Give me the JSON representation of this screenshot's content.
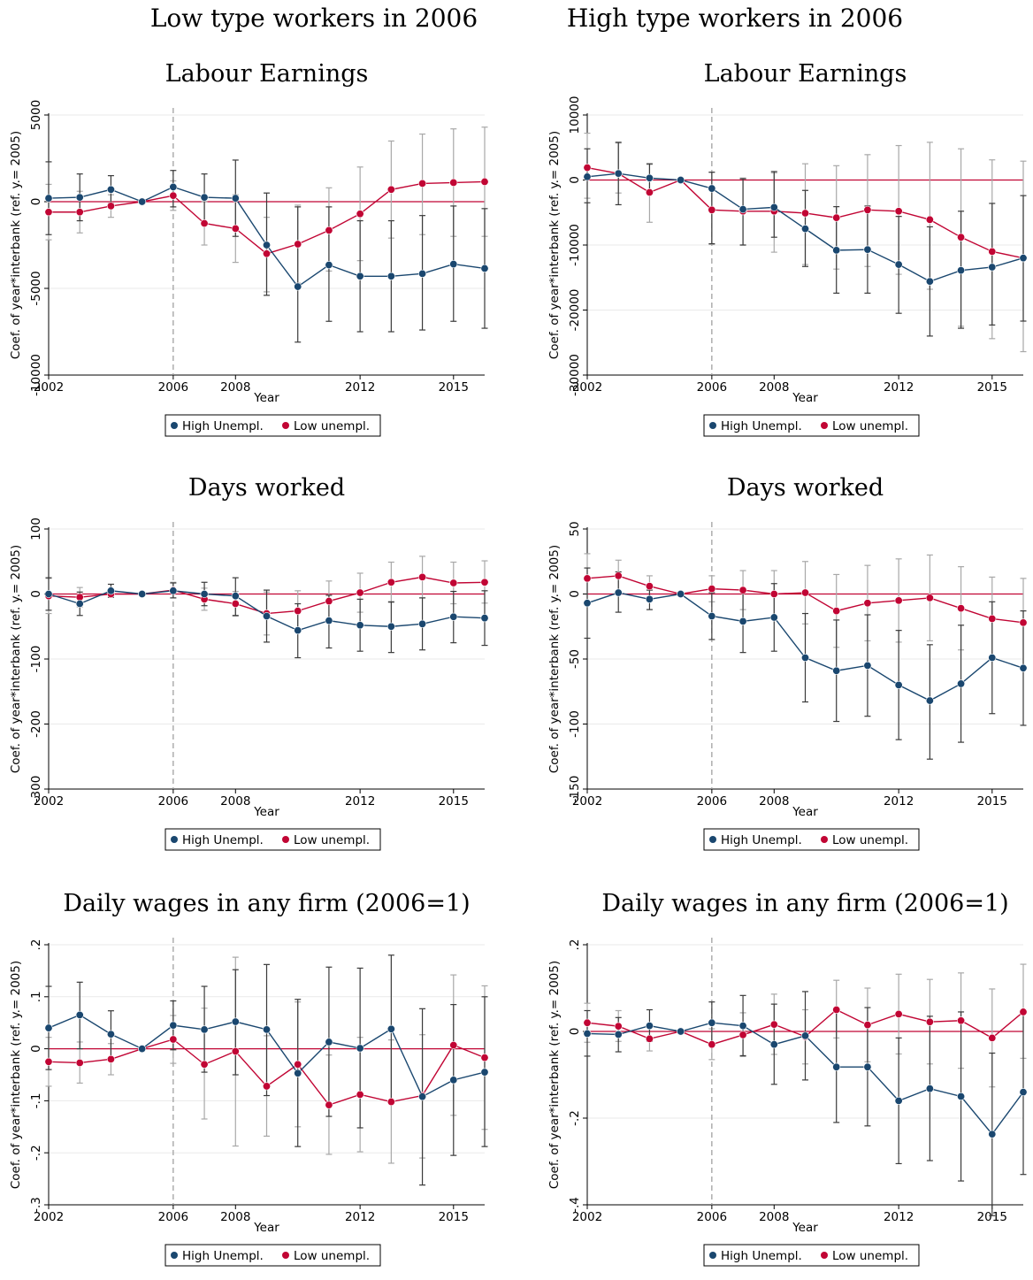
{
  "column_titles": [
    "Low type workers in 2006",
    "High type workers in 2006"
  ],
  "colors": {
    "high": "#1a476f",
    "low": "#c10534",
    "ci_high": "#3a3a3a",
    "ci_low": "#a8a8a8",
    "zero_line": "#c10534",
    "vline": "#999999"
  },
  "legend": {
    "high": "High Unempl.",
    "low": "Low unempl."
  },
  "chart_data": [
    {
      "type": "line",
      "title": "Labour Earnings",
      "column": "Low type workers in 2006",
      "xlabel": "Year",
      "ylabel": "Coef. of year*interbank (ref. y.= 2005)",
      "xlim": [
        2002,
        2016
      ],
      "ylim": [
        -10000,
        5000
      ],
      "xticks": [
        2002,
        2006,
        2008,
        2012,
        2015
      ],
      "yticks": [
        -10000,
        -5000,
        0,
        5000
      ],
      "vline": 2006,
      "x": [
        2002,
        2003,
        2004,
        2005,
        2006,
        2007,
        2008,
        2009,
        2010,
        2011,
        2012,
        2013,
        2014,
        2015,
        2016
      ],
      "series": [
        {
          "name": "High Unempl.",
          "values": [
            200,
            250,
            700,
            0,
            850,
            250,
            200,
            -2500,
            -4900,
            -3650,
            -4300,
            -4300,
            -4150,
            -3600,
            -3850
          ],
          "ci_lo": [
            -1900,
            -1100,
            -100,
            0,
            -300,
            -1200,
            -2000,
            -5400,
            -8100,
            -6900,
            -7500,
            -7500,
            -7400,
            -6900,
            -7300
          ],
          "ci_hi": [
            2300,
            1600,
            1500,
            0,
            1800,
            1600,
            2400,
            500,
            -300,
            -300,
            -1100,
            -1100,
            -800,
            -250,
            -400
          ]
        },
        {
          "name": "Low unempl.",
          "values": [
            -600,
            -600,
            -250,
            0,
            350,
            -1250,
            -1550,
            -3000,
            -2450,
            -1650,
            -700,
            700,
            1050,
            1100,
            1150
          ],
          "ci_lo": [
            -2200,
            -1800,
            -900,
            0,
            -500,
            -2500,
            -3500,
            -5200,
            -4700,
            -4000,
            -3400,
            -2100,
            -1900,
            -2000,
            -2000
          ],
          "ci_hi": [
            1000,
            600,
            400,
            0,
            1200,
            0,
            400,
            -900,
            -200,
            800,
            2000,
            3500,
            3900,
            4200,
            4300
          ]
        }
      ]
    },
    {
      "type": "line",
      "title": "Labour Earnings",
      "column": "High type workers in 2006",
      "xlabel": "Year",
      "ylabel": "Coef. of year*interbank (ref. y.= 2005)",
      "xlim": [
        2002,
        2016
      ],
      "ylim": [
        -30000,
        10000
      ],
      "xticks": [
        2002,
        2006,
        2008,
        2012,
        2015
      ],
      "yticks": [
        -30000,
        -20000,
        -10000,
        0,
        10000
      ],
      "vline": 2006,
      "x": [
        2002,
        2003,
        2004,
        2005,
        2006,
        2007,
        2008,
        2009,
        2010,
        2011,
        2012,
        2013,
        2014,
        2015,
        2016
      ],
      "series": [
        {
          "name": "High Unempl.",
          "values": [
            500,
            1000,
            300,
            0,
            -1300,
            -4500,
            -4200,
            -7500,
            -10800,
            -10700,
            -13000,
            -15600,
            -13900,
            -13400,
            -12000
          ],
          "ci_lo": [
            -3500,
            -3800,
            -1800,
            0,
            -9800,
            -10000,
            -8800,
            -13300,
            -17400,
            -17400,
            -20500,
            -24000,
            -22800,
            -22300,
            -21700
          ],
          "ci_hi": [
            4800,
            5800,
            2500,
            0,
            1200,
            200,
            1300,
            -1600,
            -4100,
            -4000,
            -5600,
            -7200,
            -4800,
            -3600,
            -2400
          ]
        },
        {
          "name": "Low unempl.",
          "values": [
            1900,
            1000,
            -1900,
            0,
            -4600,
            -4800,
            -4800,
            -5100,
            -5800,
            -4600,
            -4800,
            -6100,
            -8800,
            -11000,
            -12000
          ],
          "ci_lo": [
            -2800,
            -2000,
            -6500,
            0,
            -9900,
            -10000,
            -11100,
            -13000,
            -13700,
            -13300,
            -14500,
            -16800,
            -22500,
            -24400,
            -26400
          ],
          "ci_hi": [
            7200,
            5700,
            2400,
            0,
            1200,
            300,
            1100,
            2500,
            2200,
            3900,
            5300,
            5800,
            4800,
            3100,
            2900
          ]
        }
      ]
    },
    {
      "type": "line",
      "title": "Days worked",
      "column": "Low type workers in 2006",
      "xlabel": "Year",
      "ylabel": "Coef. of year*interbank (ref. y.= 2005)",
      "xlim": [
        2002,
        2016
      ],
      "ylim": [
        -300,
        100
      ],
      "xticks": [
        2002,
        2006,
        2008,
        2012,
        2015
      ],
      "yticks": [
        -300,
        -200,
        -100,
        0,
        100
      ],
      "vline": 2006,
      "x": [
        2002,
        2003,
        2004,
        2005,
        2006,
        2007,
        2008,
        2009,
        2010,
        2011,
        2012,
        2013,
        2014,
        2015,
        2016
      ],
      "series": [
        {
          "name": "High Unempl.",
          "values": [
            0,
            -15,
            5,
            0,
            5,
            0,
            -3,
            -34,
            -56,
            -41,
            -48,
            -50,
            -46,
            -35,
            -37
          ],
          "ci_lo": [
            -25,
            -33,
            -5,
            0,
            -6,
            -18,
            -33,
            -74,
            -98,
            -83,
            -88,
            -90,
            -86,
            -75,
            -79
          ],
          "ci_hi": [
            25,
            3,
            15,
            0,
            17,
            18,
            25,
            6,
            -15,
            -2,
            -8,
            -12,
            -6,
            4,
            5
          ]
        },
        {
          "name": "Low unempl.",
          "values": [
            -3,
            -5,
            0,
            0,
            6,
            -8,
            -15,
            -30,
            -26,
            -11,
            2,
            18,
            26,
            17,
            18
          ],
          "ci_lo": [
            -30,
            -20,
            -5,
            0,
            -6,
            -25,
            -34,
            -63,
            -57,
            -43,
            -28,
            -13,
            -6,
            -15,
            -14
          ],
          "ci_hi": [
            24,
            10,
            5,
            0,
            18,
            9,
            4,
            3,
            5,
            20,
            32,
            49,
            58,
            49,
            51
          ]
        }
      ]
    },
    {
      "type": "line",
      "title": "Days worked",
      "column": "High type workers in 2006",
      "xlabel": "Year",
      "ylabel": "Coef. of year*interbank (ref. y.= 2005)",
      "xlim": [
        2002,
        2016
      ],
      "ylim": [
        -150,
        50
      ],
      "xticks": [
        2002,
        2006,
        2008,
        2012,
        2015
      ],
      "yticks": [
        -150,
        -100,
        -50,
        0,
        50
      ],
      "vline": 2006,
      "x": [
        2002,
        2003,
        2004,
        2005,
        2006,
        2007,
        2008,
        2009,
        2010,
        2011,
        2012,
        2013,
        2014,
        2015,
        2016
      ],
      "series": [
        {
          "name": "High Unempl.",
          "values": [
            -7,
            1,
            -4,
            0,
            -17,
            -21,
            -18,
            -49,
            -59,
            -55,
            -70,
            -82,
            -69,
            -49,
            -57
          ],
          "ci_lo": [
            -34,
            -14,
            -12,
            0,
            -35,
            -45,
            -44,
            -83,
            -98,
            -94,
            -112,
            -127,
            -114,
            -92,
            -101
          ],
          "ci_hi": [
            20,
            17,
            3,
            0,
            1,
            3,
            8,
            -15,
            -20,
            -16,
            -28,
            -39,
            -24,
            -6,
            -13
          ]
        },
        {
          "name": "Low unempl.",
          "values": [
            12,
            14,
            6,
            0,
            4,
            3,
            0,
            1,
            -13,
            -7,
            -5,
            -3,
            -11,
            -19,
            -22
          ],
          "ci_lo": [
            -7,
            2,
            -2,
            0,
            -6,
            -12,
            -17,
            -23,
            -41,
            -36,
            -37,
            -36,
            -43,
            -51,
            -56
          ],
          "ci_hi": [
            31,
            26,
            14,
            0,
            14,
            18,
            18,
            25,
            15,
            22,
            27,
            30,
            21,
            13,
            12
          ]
        }
      ]
    },
    {
      "type": "line",
      "title": "Daily wages in any firm (2006=1)",
      "column": "Low type workers in 2006",
      "xlabel": "Year",
      "ylabel": "Coef. of year*interbank (ref. y.= 2005)",
      "xlim": [
        2002,
        2016
      ],
      "ylim": [
        -0.3,
        0.2
      ],
      "xticks": [
        2002,
        2006,
        2008,
        2012,
        2015
      ],
      "yticks": [
        -0.3,
        -0.2,
        -0.1,
        0,
        0.1,
        0.2
      ],
      "ytick_labels": [
        "-.3",
        "-.2",
        "-.1",
        "0",
        ".1",
        ".2"
      ],
      "vline": 2006,
      "x": [
        2002,
        2003,
        2004,
        2005,
        2006,
        2007,
        2008,
        2009,
        2010,
        2011,
        2012,
        2013,
        2014,
        2015,
        2016
      ],
      "series": [
        {
          "name": "High Unempl.",
          "values": [
            0.04,
            0.065,
            0.028,
            0,
            0.045,
            0.037,
            0.052,
            0.037,
            -0.047,
            0.013,
            0.001,
            0.038,
            -0.092,
            -0.06,
            -0.045
          ],
          "ci_lo": [
            -0.04,
            0,
            -0.02,
            0,
            -0.002,
            -0.045,
            -0.05,
            -0.09,
            -0.188,
            -0.13,
            -0.152,
            -0.105,
            -0.262,
            -0.205,
            -0.188
          ],
          "ci_hi": [
            0.12,
            0.128,
            0.073,
            0,
            0.092,
            0.12,
            0.152,
            0.162,
            0.095,
            0.157,
            0.155,
            0.18,
            0.077,
            0.085,
            0.1
          ]
        },
        {
          "name": "Low unempl.",
          "values": [
            -0.025,
            -0.027,
            -0.02,
            0,
            0.018,
            -0.03,
            -0.005,
            -0.072,
            -0.03,
            -0.108,
            -0.088,
            -0.102,
            -0.09,
            0.007,
            -0.017
          ],
          "ci_lo": [
            -0.072,
            -0.066,
            -0.05,
            0,
            -0.028,
            -0.135,
            -0.187,
            -0.168,
            -0.15,
            -0.203,
            -0.198,
            -0.22,
            -0.21,
            -0.128,
            -0.155
          ],
          "ci_hi": [
            0.022,
            0.013,
            0.01,
            0,
            0.064,
            0.078,
            0.176,
            0.025,
            0.09,
            -0.012,
            0.022,
            0.017,
            0.027,
            0.142,
            0.121
          ]
        }
      ]
    },
    {
      "type": "line",
      "title": "Daily wages in any firm (2006=1)",
      "column": "High type workers in 2006",
      "xlabel": "Year",
      "ylabel": "Coef. of year*interbank (ref. y.= 2005)",
      "xlim": [
        2002,
        2016
      ],
      "ylim": [
        -0.4,
        0.2
      ],
      "xticks": [
        2002,
        2006,
        2008,
        2012,
        2015
      ],
      "yticks": [
        -0.4,
        -0.2,
        0,
        0.2
      ],
      "ytick_labels": [
        "-.4",
        "-.2",
        "0",
        ".2"
      ],
      "vline": 2006,
      "x": [
        2002,
        2003,
        2004,
        2005,
        2006,
        2007,
        2008,
        2009,
        2010,
        2011,
        2012,
        2013,
        2014,
        2015,
        2016
      ],
      "series": [
        {
          "name": "High Unempl.",
          "values": [
            -0.005,
            -0.007,
            0.013,
            0,
            0.02,
            0.013,
            -0.03,
            -0.01,
            -0.082,
            -0.082,
            -0.16,
            -0.132,
            -0.15,
            -0.237,
            -0.14
          ],
          "ci_lo": [
            -0.057,
            -0.047,
            -0.023,
            0,
            -0.03,
            -0.056,
            -0.122,
            -0.112,
            -0.21,
            -0.218,
            -0.305,
            -0.298,
            -0.345,
            -0.425,
            -0.33
          ],
          "ci_hi": [
            0.048,
            0.032,
            0.05,
            0,
            0.068,
            0.083,
            0.063,
            0.092,
            0.047,
            0.055,
            -0.015,
            0.035,
            0.045,
            -0.05,
            0.05
          ]
        },
        {
          "name": "Low unempl.",
          "values": [
            0.02,
            0.012,
            -0.017,
            0,
            -0.03,
            -0.008,
            0.016,
            -0.012,
            0.05,
            0.015,
            0.04,
            0.022,
            0.025,
            -0.015,
            0.045
          ],
          "ci_lo": [
            -0.025,
            -0.023,
            -0.045,
            0,
            -0.065,
            -0.058,
            -0.053,
            -0.075,
            -0.015,
            -0.07,
            -0.052,
            -0.075,
            -0.085,
            -0.128,
            -0.062
          ],
          "ci_hi": [
            0.065,
            0.048,
            0.012,
            0,
            0.006,
            0.043,
            0.086,
            0.05,
            0.118,
            0.1,
            0.132,
            0.12,
            0.135,
            0.098,
            0.155
          ]
        }
      ]
    }
  ]
}
